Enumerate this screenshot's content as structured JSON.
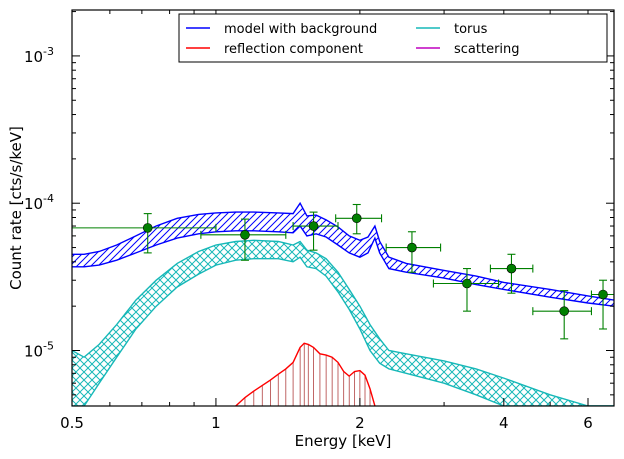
{
  "chart_data": {
    "type": "line",
    "xlabel": "Energy [keV]",
    "ylabel": "Count rate [cts/s/keV]",
    "xscale": "log",
    "yscale": "log",
    "xlim": [
      0.5,
      6.8
    ],
    "ylim": [
      4.2e-06,
      0.00205
    ],
    "grid": false,
    "legend": {
      "placement": "top-right",
      "columns": 2
    },
    "x_ticks": [
      {
        "value": 0.5,
        "label": "0.5"
      },
      {
        "value": 1,
        "label": "1"
      },
      {
        "value": 2,
        "label": "2"
      },
      {
        "value": 4,
        "label": "4"
      },
      {
        "value": 6,
        "label": "6"
      }
    ],
    "y_ticks": [
      {
        "value": 1e-05,
        "base": "10",
        "exp": "-5"
      },
      {
        "value": 0.0001,
        "base": "10",
        "exp": "-4"
      },
      {
        "value": 0.001,
        "base": "10",
        "exp": "-3"
      }
    ],
    "series": [
      {
        "name": "model with background",
        "color": "#0000ff",
        "style": "band",
        "hatch": "diagonal",
        "x": [
          0.5,
          0.53,
          0.57,
          0.62,
          0.68,
          0.75,
          0.83,
          0.92,
          1.0,
          1.1,
          1.2,
          1.35,
          1.45,
          1.5,
          1.55,
          1.62,
          1.7,
          1.8,
          1.9,
          2.0,
          2.08,
          2.15,
          2.2,
          2.3,
          2.5,
          3.0,
          3.5,
          4.0,
          5.0,
          6.0,
          6.8
        ],
        "lower": [
          3.7e-05,
          3.7e-05,
          3.8e-05,
          4.1e-05,
          4.6e-05,
          5.2e-05,
          5.8e-05,
          6.2e-05,
          6.4e-05,
          6.5e-05,
          6.5e-05,
          6.4e-05,
          6.3e-05,
          7e-05,
          6e-05,
          6.2e-05,
          5.9e-05,
          5.2e-05,
          4.6e-05,
          4.3e-05,
          4.6e-05,
          5.8e-05,
          4.6e-05,
          3.6e-05,
          3.4e-05,
          3.1e-05,
          2.8e-05,
          2.6e-05,
          2.3e-05,
          2.1e-05,
          2e-05
        ],
        "upper": [
          4.5e-05,
          4.5e-05,
          4.7e-05,
          5.2e-05,
          6e-05,
          7e-05,
          7.9e-05,
          8.4e-05,
          8.6e-05,
          8.7e-05,
          8.7e-05,
          8.6e-05,
          8.5e-05,
          0.0001,
          8.2e-05,
          8.3e-05,
          7.7e-05,
          6.9e-05,
          6e-05,
          5.6e-05,
          5.9e-05,
          7e-05,
          5.5e-05,
          4.3e-05,
          3.9e-05,
          3.5e-05,
          3.2e-05,
          2.9e-05,
          2.6e-05,
          2.35e-05,
          2.2e-05
        ]
      },
      {
        "name": "torus",
        "color": "#17b8b8",
        "style": "band",
        "hatch": "cross",
        "x": [
          0.5,
          0.53,
          0.57,
          0.62,
          0.68,
          0.75,
          0.83,
          0.92,
          1.0,
          1.1,
          1.2,
          1.35,
          1.45,
          1.5,
          1.55,
          1.62,
          1.7,
          1.8,
          1.9,
          2.0,
          2.1,
          2.2,
          2.3,
          2.5,
          3.0,
          3.5,
          4.0,
          5.0,
          6.0,
          6.8
        ],
        "lower": [
          4.2e-06,
          4.2e-06,
          6e-06,
          9e-06,
          1.4e-05,
          2e-05,
          2.7e-05,
          3.3e-05,
          3.8e-05,
          4.1e-05,
          4.2e-05,
          4.2e-05,
          4e-05,
          4.3e-05,
          3.7e-05,
          3.6e-05,
          3.2e-05,
          2.5e-05,
          1.9e-05,
          1.4e-05,
          1e-05,
          8.2e-06,
          7.5e-06,
          7e-06,
          6e-06,
          5e-06,
          4.2e-06,
          4.2e-06,
          4.2e-06,
          4.2e-06
        ],
        "upper": [
          1e-05,
          9e-06,
          1.1e-05,
          1.5e-05,
          2.2e-05,
          3e-05,
          3.9e-05,
          4.7e-05,
          5.2e-05,
          5.5e-05,
          5.6e-05,
          5.5e-05,
          5.2e-05,
          5.5e-05,
          4.8e-05,
          4.6e-05,
          4.2e-05,
          3.4e-05,
          2.6e-05,
          2e-05,
          1.5e-05,
          1.2e-05,
          1e-05,
          9.5e-06,
          8.5e-06,
          7.5e-06,
          6.5e-06,
          5e-06,
          4.2e-06,
          4.2e-06
        ]
      },
      {
        "name": "reflection component",
        "color": "#ff0000",
        "style": "stems",
        "x": [
          1.1,
          1.15,
          1.2,
          1.25,
          1.3,
          1.35,
          1.4,
          1.45,
          1.5,
          1.53,
          1.56,
          1.6,
          1.65,
          1.7,
          1.75,
          1.8,
          1.85,
          1.9,
          1.95,
          2.0,
          2.05,
          2.1,
          2.15
        ],
        "y": [
          4.2e-06,
          4.8e-06,
          5.3e-06,
          5.8e-06,
          6.3e-06,
          6.9e-06,
          7.5e-06,
          8.3e-06,
          1.05e-05,
          1.12e-05,
          1.1e-05,
          1.05e-05,
          9.5e-06,
          9.3e-06,
          9e-06,
          8.3e-06,
          7.2e-06,
          6.7e-06,
          7.2e-06,
          7.3e-06,
          6.8e-06,
          5.5e-06,
          4.2e-06
        ]
      },
      {
        "name": "scattering",
        "color": "#bf00bf",
        "style": "line",
        "x": [],
        "y": []
      },
      {
        "name": "data",
        "color": "#008000",
        "style": "errorbar",
        "legend": false,
        "points": [
          {
            "x": 0.72,
            "y": 6.8e-05,
            "xlo": 0.5,
            "xhi": 1.0,
            "ylo": 4.6e-05,
            "yhi": 8.5e-05
          },
          {
            "x": 1.15,
            "y": 6.1e-05,
            "xlo": 0.93,
            "xhi": 1.4,
            "ylo": 4.1e-05,
            "yhi": 7.8e-05
          },
          {
            "x": 1.6,
            "y": 7e-05,
            "xlo": 1.45,
            "xhi": 1.8,
            "ylo": 4.8e-05,
            "yhi": 8.7e-05
          },
          {
            "x": 1.97,
            "y": 7.9e-05,
            "xlo": 1.78,
            "xhi": 2.22,
            "ylo": 6.2e-05,
            "yhi": 9.8e-05
          },
          {
            "x": 2.57,
            "y": 5e-05,
            "xlo": 2.27,
            "xhi": 2.95,
            "ylo": 3.4e-05,
            "yhi": 6.4e-05
          },
          {
            "x": 3.35,
            "y": 2.85e-05,
            "xlo": 2.85,
            "xhi": 3.9,
            "ylo": 1.85e-05,
            "yhi": 3.6e-05
          },
          {
            "x": 4.15,
            "y": 3.6e-05,
            "xlo": 3.75,
            "xhi": 4.6,
            "ylo": 2.45e-05,
            "yhi": 4.5e-05
          },
          {
            "x": 5.35,
            "y": 1.85e-05,
            "xlo": 4.6,
            "xhi": 6.1,
            "ylo": 1.2e-05,
            "yhi": 2.55e-05
          },
          {
            "x": 6.45,
            "y": 2.4e-05,
            "xlo": 6.1,
            "xhi": 6.8,
            "ylo": 1.4e-05,
            "yhi": 3e-05
          }
        ]
      }
    ]
  }
}
